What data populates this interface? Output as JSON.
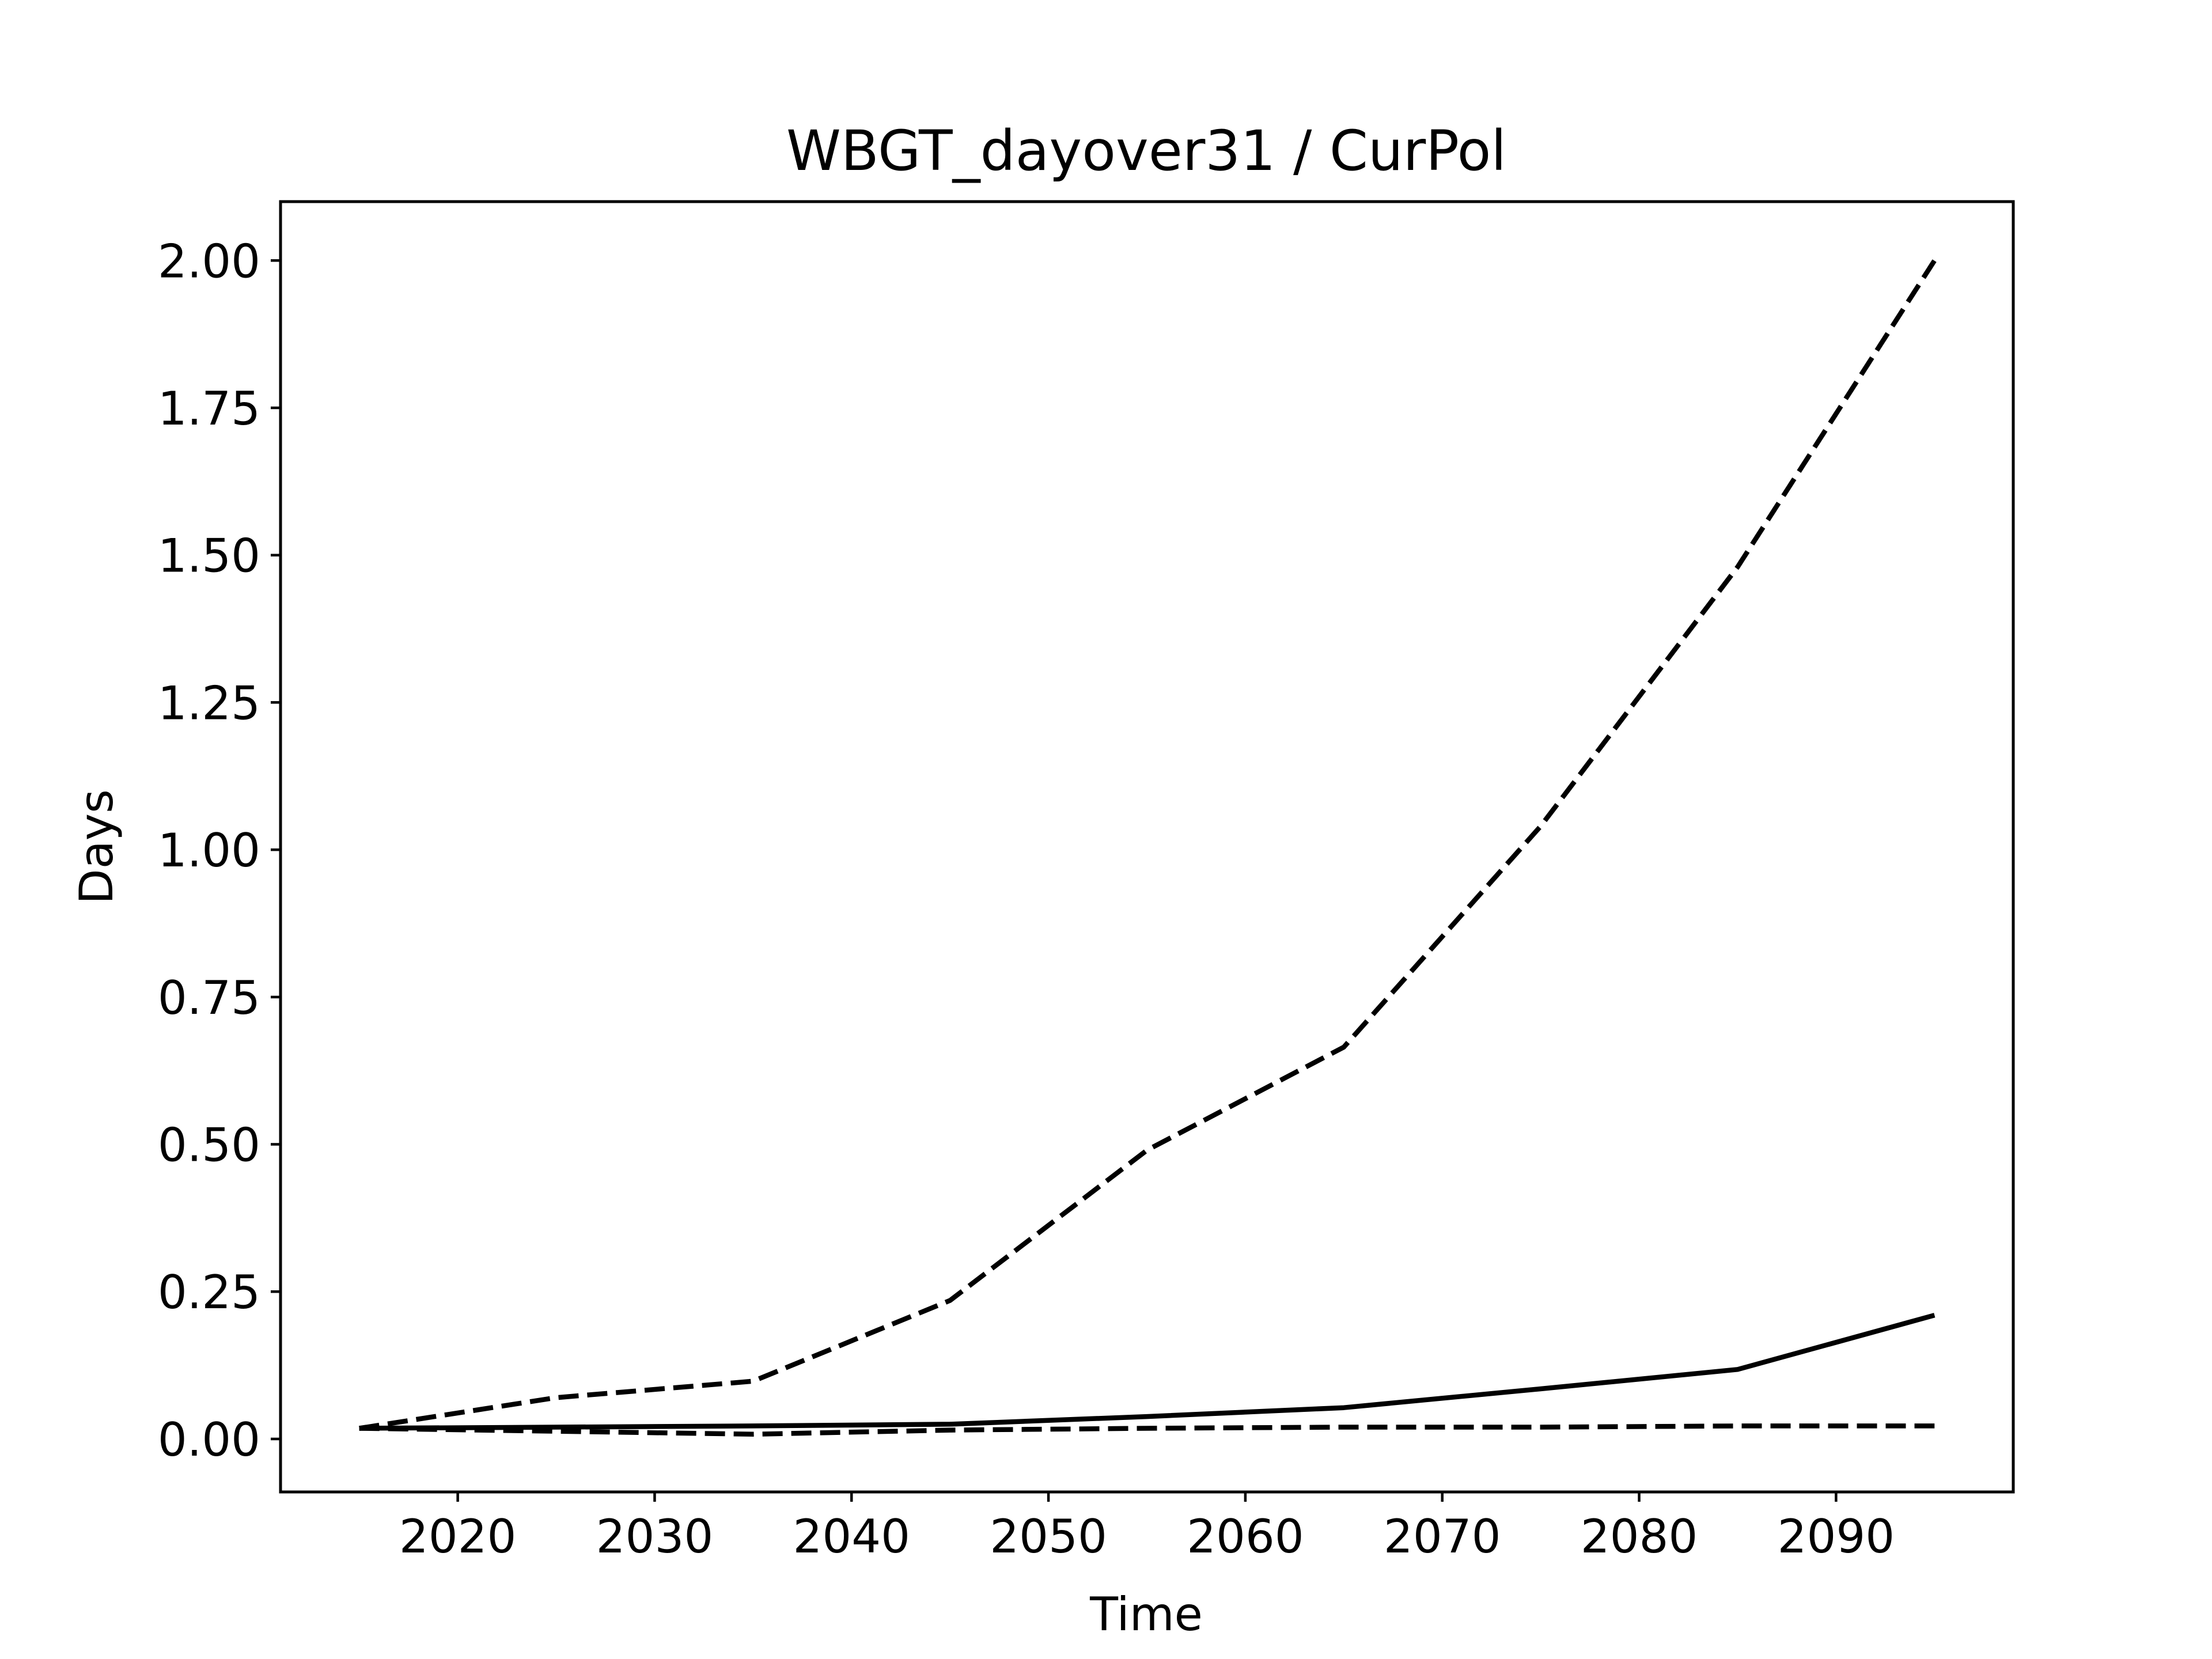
{
  "chart_data": {
    "type": "line",
    "title": "WBGT_dayover31 / CurPol",
    "xlabel": "Time",
    "ylabel": "Days",
    "xlim": [
      2011,
      2099
    ],
    "ylim": [
      -0.09,
      2.1
    ],
    "xticks": [
      2020,
      2030,
      2040,
      2050,
      2060,
      2070,
      2080,
      2090
    ],
    "xtick_labels": [
      "2020",
      "2030",
      "2040",
      "2050",
      "2060",
      "2070",
      "2080",
      "2090"
    ],
    "yticks": [
      0,
      0.25,
      0.5,
      0.75,
      1.0,
      1.25,
      1.5,
      1.75,
      2.0
    ],
    "ytick_labels": [
      "0.00",
      "0.25",
      "0.50",
      "0.75",
      "1.00",
      "1.25",
      "1.50",
      "1.75",
      "2.00"
    ],
    "grid": false,
    "line_color": "#000000",
    "x": [
      2015,
      2025,
      2035,
      2045,
      2055,
      2065,
      2075,
      2085,
      2095
    ],
    "series": [
      {
        "style": "dashed",
        "values": [
          0.018,
          0.07,
          0.098,
          0.235,
          0.49,
          0.665,
          1.04,
          1.48,
          2.0
        ]
      },
      {
        "style": "solid",
        "values": [
          0.018,
          0.02,
          0.022,
          0.025,
          0.038,
          0.053,
          0.085,
          0.118,
          0.21
        ]
      },
      {
        "style": "dashed",
        "values": [
          0.018,
          0.013,
          0.008,
          0.015,
          0.018,
          0.02,
          0.02,
          0.022,
          0.022
        ]
      }
    ]
  }
}
